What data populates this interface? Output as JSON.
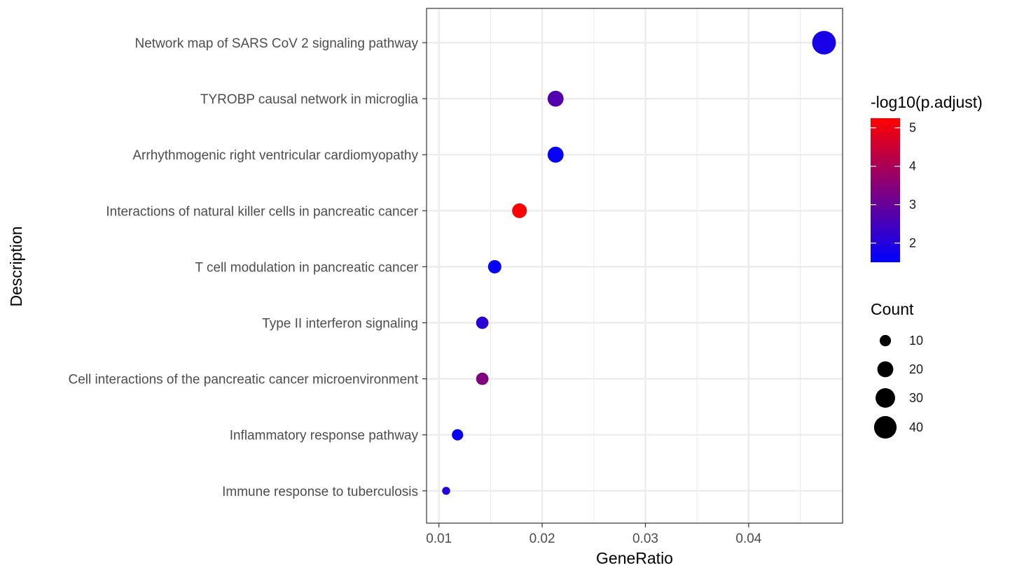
{
  "chart_data": {
    "type": "scatter",
    "xlabel": "GeneRatio",
    "ylabel": "Description",
    "xlim": [
      0.0088,
      0.0491
    ],
    "x_ticks": [
      0.01,
      0.02,
      0.03,
      0.04
    ],
    "x_tick_labels": [
      "0.01",
      "0.02",
      "0.03",
      "0.04"
    ],
    "grid": true,
    "points": [
      {
        "label": "Network map of SARS CoV 2 signaling pathway",
        "x": 0.0473,
        "count": 44,
        "neg_log10_padj": 1.85
      },
      {
        "label": "TYROBP causal network in microglia",
        "x": 0.0213,
        "count": 20,
        "neg_log10_padj": 2.7
      },
      {
        "label": "Arrhythmogenic right ventricular cardiomyopathy",
        "x": 0.0213,
        "count": 20,
        "neg_log10_padj": 1.6
      },
      {
        "label": "Interactions of natural killer cells in pancreatic cancer",
        "x": 0.0178,
        "count": 17,
        "neg_log10_padj": 5.2
      },
      {
        "label": "T cell modulation in pancreatic cancer",
        "x": 0.0154,
        "count": 14,
        "neg_log10_padj": 1.6
      },
      {
        "label": "Type II interferon signaling",
        "x": 0.0142,
        "count": 12,
        "neg_log10_padj": 2.1
      },
      {
        "label": "Cell interactions of the pancreatic cancer microenvironment",
        "x": 0.0142,
        "count": 12,
        "neg_log10_padj": 3.4
      },
      {
        "label": "Inflammatory response pathway",
        "x": 0.0118,
        "count": 10,
        "neg_log10_padj": 1.6
      },
      {
        "label": "Immune response to tuberculosis",
        "x": 0.0107,
        "count": 5,
        "neg_log10_padj": 2.0
      }
    ],
    "color_legend": {
      "title": "-log10(p.adjust)",
      "min": 1.5,
      "max": 5.25,
      "low_color": "#0000ff",
      "high_color": "#ff0000",
      "ticks": [
        2,
        3,
        4,
        5
      ],
      "tick_labels": [
        "2",
        "3",
        "4",
        "5"
      ]
    },
    "size_legend": {
      "title": "Count",
      "values": [
        10,
        20,
        30,
        40
      ],
      "labels": [
        "10",
        "20",
        "30",
        "40"
      ]
    },
    "legend_position": "right"
  }
}
